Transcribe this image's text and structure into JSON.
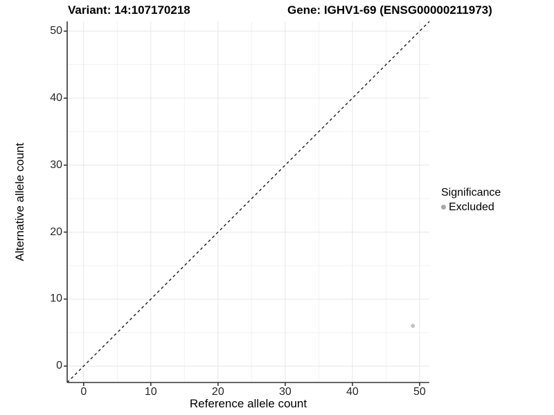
{
  "titles": {
    "left": "Variant: 14:107170218",
    "right": "Gene: IGHV1-69 (ENSG00000211973)"
  },
  "chart_data": {
    "type": "scatter",
    "title_left": "Variant: 14:107170218",
    "title_right": "Gene: IGHV1-69 (ENSG00000211973)",
    "xlabel": "Reference allele count",
    "ylabel": "Alternative allele count",
    "xlim": [
      -2.45,
      51.45
    ],
    "ylim": [
      -2.45,
      51.45
    ],
    "x_ticks": [
      0,
      10,
      20,
      30,
      40,
      50
    ],
    "y_ticks": [
      0,
      10,
      20,
      30,
      40,
      50
    ],
    "x_minor_ticks": [
      5,
      15,
      25,
      35,
      45
    ],
    "y_minor_ticks": [
      5,
      15,
      25,
      35,
      45
    ],
    "grid": "major+minor",
    "series": [
      {
        "name": "Excluded",
        "color": "#c4c4c4",
        "point_radius": 3,
        "points": [
          {
            "x": 49,
            "y": 6
          }
        ]
      }
    ],
    "reference_line": {
      "slope": 1,
      "intercept": 0,
      "style": "dashed",
      "color": "#1a1a1a"
    },
    "legend": {
      "title": "Significance",
      "position": "right",
      "items": [
        {
          "label": "Excluded",
          "color": "#a6a6a6"
        }
      ]
    }
  },
  "colors": {
    "background": "#ffffff",
    "axis_line": "#333333",
    "grid_major": "#e6e6e6",
    "grid_minor": "#f1f1f1",
    "tick_mark": "#333333",
    "tick_label": "#262626"
  }
}
